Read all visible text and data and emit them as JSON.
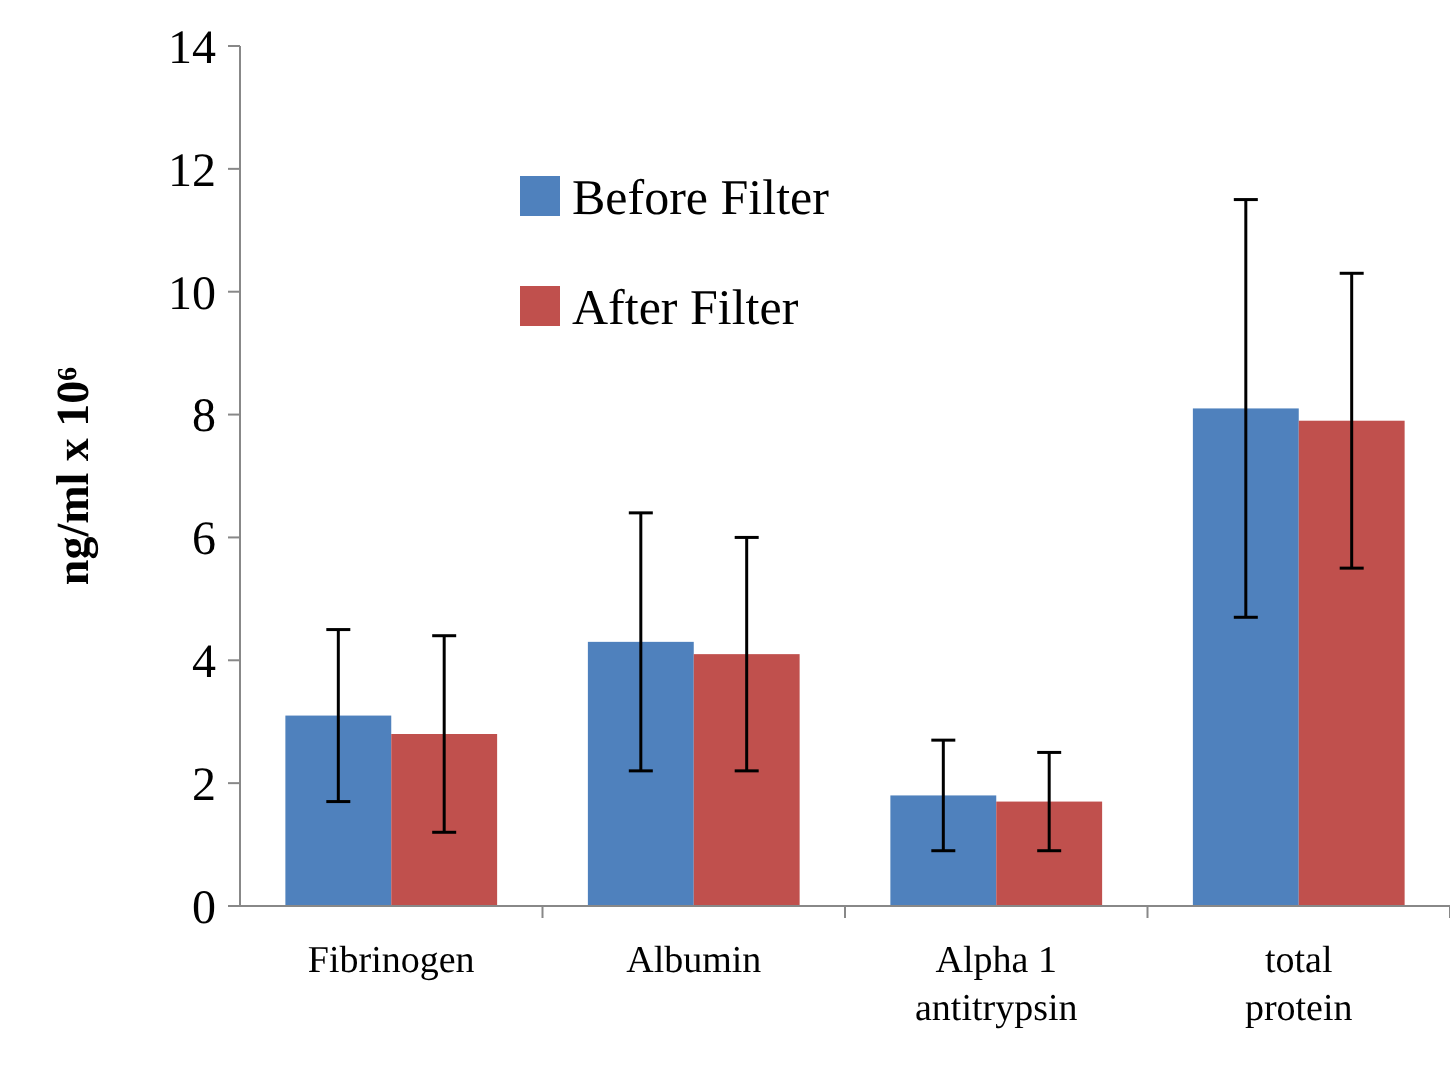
{
  "chart_data": {
    "type": "bar",
    "ylabel": "ng/ml x 10⁶",
    "categories": [
      "Fibrinogen",
      "Albumin",
      "Alpha 1 antitrypsin",
      "total protein"
    ],
    "series": [
      {
        "name": "Before Filter",
        "color": "#4f81bd",
        "values": [
          3.1,
          4.3,
          1.8,
          8.1
        ],
        "errors": [
          1.4,
          2.1,
          0.9,
          3.4
        ]
      },
      {
        "name": "After Filter",
        "color": "#c0504d",
        "values": [
          2.8,
          4.1,
          1.7,
          7.9
        ],
        "errors": [
          1.6,
          1.9,
          0.8,
          2.4
        ]
      }
    ],
    "ylim": [
      0,
      14
    ],
    "yticks": [
      0,
      2,
      4,
      6,
      8,
      10,
      12,
      14
    ],
    "grid": false,
    "legend": "top"
  }
}
